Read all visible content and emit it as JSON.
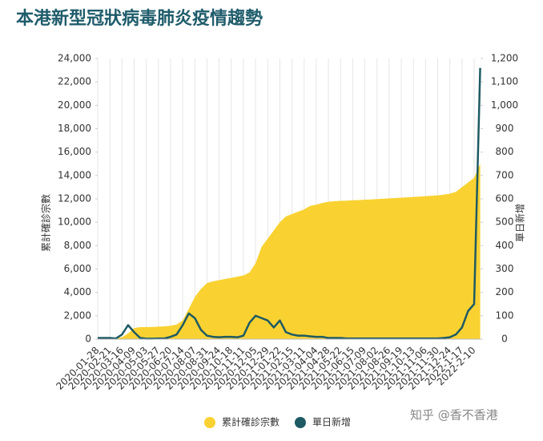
{
  "chart_data": {
    "type": "area-line",
    "title": "本港新型冠狀病毒肺炎疫情趨勢",
    "y_label": "累計確診宗數",
    "y2_label": "單日新增",
    "watermark": "知乎 @香不香港",
    "grid": true,
    "legend": "bottom",
    "categories": [
      "2020-01-28",
      null,
      "2020-02-21",
      null,
      "2020-03-16",
      null,
      "2020-04-09",
      null,
      "2020-05-03",
      null,
      "2020-05-27",
      null,
      "2020-06-20",
      null,
      "2020-07-14",
      null,
      "2020-08-07",
      null,
      "2020-08-31",
      null,
      "2020-09-24",
      null,
      "2020-10-18",
      null,
      "2020-11-11",
      null,
      "2020-12-05",
      null,
      "2020-12-29",
      null,
      "2021-01-22",
      null,
      "2021-02-15",
      null,
      "2021-03-11",
      null,
      "2021-04-04",
      null,
      "2021-04-28",
      null,
      "2021-05-22",
      null,
      "2021-06-15",
      null,
      "2021-07-09",
      null,
      "2021-08-02",
      null,
      "2021-08-26",
      null,
      "2021-09-19",
      null,
      "2021-10-13",
      null,
      "2021-11-06",
      null,
      "2021-11-30",
      null,
      "2021-12-24",
      null,
      "2022-1-17",
      null,
      "2022-2-10",
      null
    ],
    "series": [
      {
        "name": "累計確診宗數",
        "type": "area",
        "color": "#f9d232",
        "values": [
          0,
          30,
          70,
          100,
          160,
          500,
          950,
          1030,
          1040,
          1050,
          1070,
          1100,
          1150,
          1250,
          1600,
          2600,
          3600,
          4300,
          4800,
          4950,
          5050,
          5150,
          5250,
          5350,
          5450,
          5700,
          6500,
          7900,
          8600,
          9300,
          10000,
          10500,
          10700,
          10900,
          11100,
          11400,
          11500,
          11650,
          11750,
          11800,
          11830,
          11850,
          11880,
          11900,
          11920,
          11950,
          11980,
          12010,
          12040,
          12070,
          12100,
          12130,
          12160,
          12200,
          12230,
          12270,
          12300,
          12360,
          12450,
          12600,
          13000,
          13400,
          13800,
          15000
        ]
      },
      {
        "name": "單日新增",
        "type": "line",
        "axis": "y2",
        "color": "#1e5a63",
        "values": [
          5,
          5,
          5,
          3,
          20,
          60,
          30,
          5,
          2,
          2,
          3,
          3,
          10,
          20,
          60,
          110,
          90,
          40,
          15,
          10,
          8,
          10,
          10,
          8,
          15,
          70,
          100,
          90,
          80,
          50,
          80,
          30,
          20,
          15,
          15,
          12,
          10,
          10,
          5,
          5,
          5,
          3,
          3,
          3,
          3,
          3,
          3,
          3,
          3,
          3,
          3,
          3,
          3,
          3,
          3,
          3,
          3,
          5,
          8,
          20,
          50,
          120,
          150,
          1160
        ]
      }
    ],
    "ylim": [
      0,
      24000
    ],
    "yticks": [
      0,
      {
        "value": 2000,
        "label": "2,000"
      },
      {
        "value": 4000,
        "label": "4,000"
      },
      {
        "value": 6000,
        "label": "6,000"
      },
      {
        "value": 8000,
        "label": "8,000"
      },
      {
        "value": 10000,
        "label": "10,000"
      },
      {
        "value": 12000,
        "label": "12,000"
      },
      {
        "value": 14000,
        "label": "14,000"
      },
      {
        "value": 16000,
        "label": "16,000"
      },
      {
        "value": 18000,
        "label": "18,000"
      },
      {
        "value": 20000,
        "label": "20,000"
      },
      {
        "value": 22000,
        "label": "22,000"
      },
      {
        "value": 24000,
        "label": "24,000"
      }
    ],
    "y2lim": [
      0,
      1200
    ],
    "y2ticks": [
      0,
      100,
      200,
      300,
      400,
      500,
      600,
      700,
      800,
      900,
      {
        "value": 1000,
        "label": "1,000"
      },
      {
        "value": 1100,
        "label": "1,100"
      },
      {
        "value": 1200,
        "label": "1,200"
      }
    ]
  }
}
